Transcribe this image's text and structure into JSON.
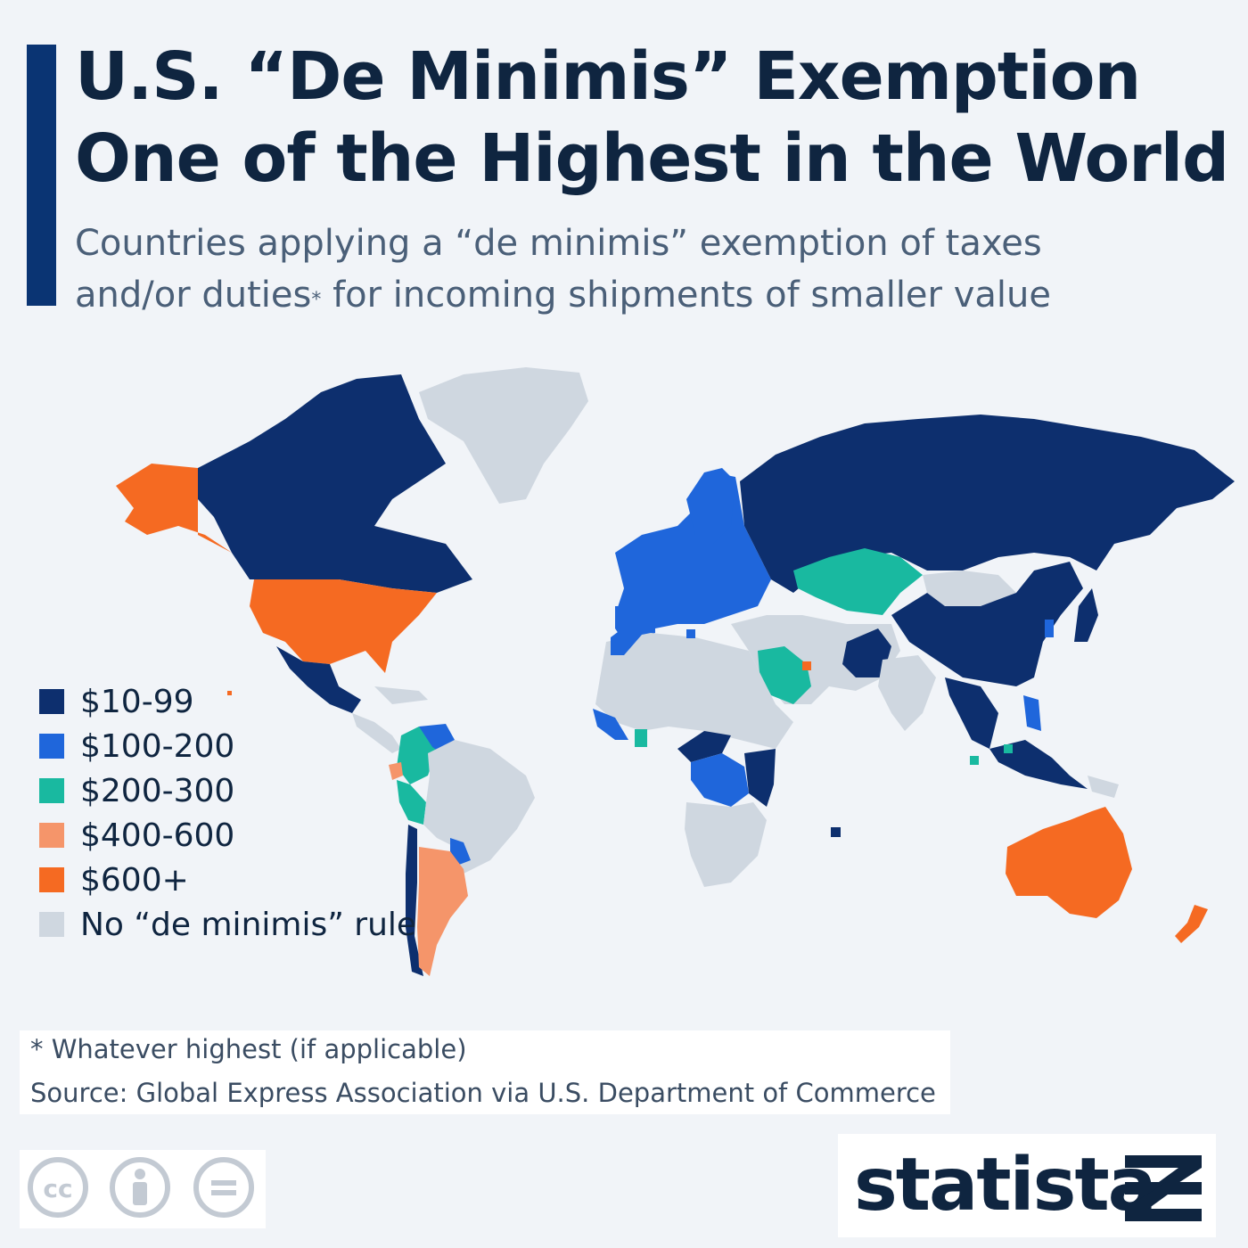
{
  "title_lines": [
    "U.S. “De Minimis” Exemption",
    "One of the Highest in the World"
  ],
  "subtitle_line1": "Countries applying a “de minimis” exemption of taxes",
  "subtitle_line2_a": "and/or duties",
  "subtitle_line2_sup": "*",
  "subtitle_line2_b": " for incoming shipments of smaller value",
  "colors": {
    "tier_10_99": "#0d2f6e",
    "tier_100_200": "#1f66db",
    "tier_200_300": "#19b9a0",
    "tier_400_600": "#f5956a",
    "tier_600_plus": "#f56a22",
    "no_rule": "#cfd7e0",
    "accent_bar": "#0a3473"
  },
  "legend": [
    {
      "label": "$10-99",
      "color": "#0d2f6e"
    },
    {
      "label": "$100-200",
      "color": "#1f66db"
    },
    {
      "label": "$200-300",
      "color": "#19b9a0"
    },
    {
      "label": "$400-600",
      "color": "#f5956a"
    },
    {
      "label": "$600+",
      "color": "#f56a22"
    },
    {
      "label": "No “de minimis” rule",
      "color": "#cfd7e0"
    }
  ],
  "map_regions": [
    {
      "region": "Alaska",
      "tier": "$600+"
    },
    {
      "region": "Canada",
      "tier": "$10-99"
    },
    {
      "region": "Greenland",
      "tier": "No “de minimis” rule"
    },
    {
      "region": "United States",
      "tier": "$600+"
    },
    {
      "region": "Mexico",
      "tier": "$10-99"
    },
    {
      "region": "Central America & Caribbean",
      "tier": "No “de minimis” rule"
    },
    {
      "region": "Colombia / Ecuador",
      "tier": "$200-300"
    },
    {
      "region": "Venezuela",
      "tier": "$100-200"
    },
    {
      "region": "Peru",
      "tier": "$200-300"
    },
    {
      "region": "Brazil",
      "tier": "No “de minimis” rule"
    },
    {
      "region": "Chile",
      "tier": "$10-99"
    },
    {
      "region": "Argentina",
      "tier": "$400-600"
    },
    {
      "region": "Europe",
      "tier": "$100-200"
    },
    {
      "region": "Russia",
      "tier": "$10-99"
    },
    {
      "region": "Kazakhstan / Central Asia",
      "tier": "$200-300"
    },
    {
      "region": "Mongolia",
      "tier": "No “de minimis” rule"
    },
    {
      "region": "China",
      "tier": "$10-99"
    },
    {
      "region": "India",
      "tier": "No “de minimis” rule"
    },
    {
      "region": "Saudi Arabia",
      "tier": "$200-300"
    },
    {
      "region": "North & Central Africa",
      "tier": "No “de minimis” rule"
    },
    {
      "region": "DR Congo",
      "tier": "$100-200"
    },
    {
      "region": "East Africa",
      "tier": "$10-99"
    },
    {
      "region": "Southeast Asia",
      "tier": "$10-99"
    },
    {
      "region": "Japan",
      "tier": "$10-99"
    },
    {
      "region": "Australia",
      "tier": "$600+"
    },
    {
      "region": "New Zealand",
      "tier": "$600+"
    }
  ],
  "footnote": "* Whatever highest (if applicable)",
  "source": "Source: Global Express Association via U.S. Department of Commerce",
  "brand": "statista",
  "icons": [
    "cc-icon",
    "by-icon",
    "nd-icon",
    "statista-logo-icon"
  ]
}
